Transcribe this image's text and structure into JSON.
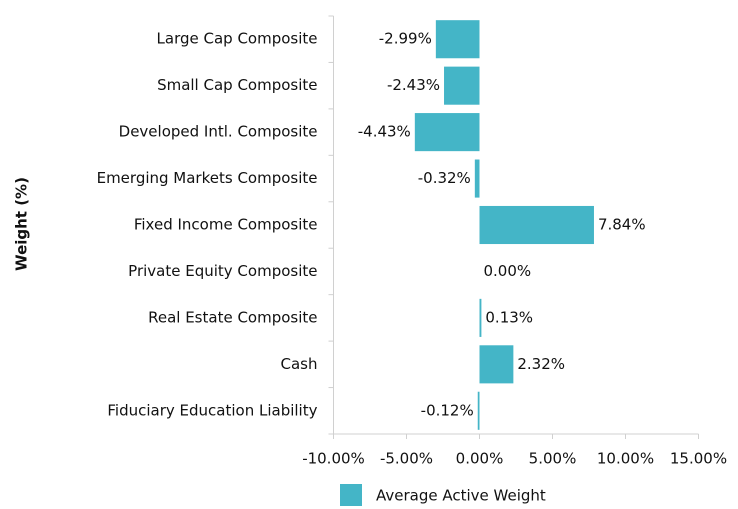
{
  "chart_data": {
    "type": "barh",
    "y_label": "Weight (%)",
    "categories": [
      "Large Cap Composite",
      "Small Cap Composite",
      "Developed Intl. Composite",
      "Emerging Markets Composite",
      "Fixed Income Composite",
      "Private Equity Composite",
      "Real Estate Composite",
      "Cash",
      "Fiduciary Education Liability"
    ],
    "series": [
      {
        "name": "Average Active Weight",
        "color": "#44b5c7",
        "values": [
          -2.99,
          -2.43,
          -4.43,
          -0.32,
          7.84,
          0.0,
          0.13,
          2.32,
          -0.12
        ],
        "value_labels": [
          "-2.99%",
          "-2.43%",
          "-4.43%",
          "-0.32%",
          "7.84%",
          "0.00%",
          "0.13%",
          "2.32%",
          "-0.12%"
        ]
      }
    ],
    "xlim": [
      -10,
      15
    ],
    "xticks": [
      {
        "value": -10,
        "label": "-10.00%"
      },
      {
        "value": -5,
        "label": "-5.00%"
      },
      {
        "value": 0,
        "label": "0.00%"
      },
      {
        "value": 5,
        "label": "5.00%"
      },
      {
        "value": 10,
        "label": "10.00%"
      },
      {
        "value": 15,
        "label": "15.00%"
      }
    ],
    "legend": "bottom"
  }
}
